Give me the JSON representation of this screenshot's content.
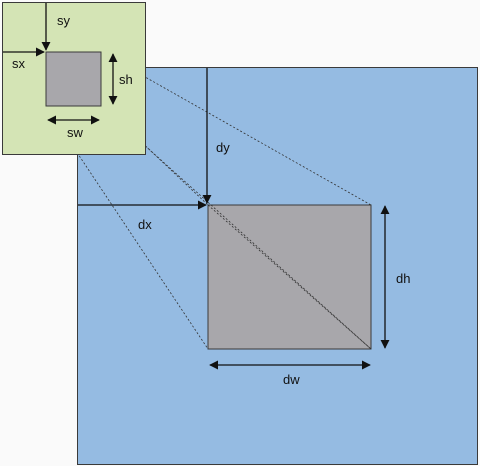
{
  "colors": {
    "destination_fill": "#95bbe2",
    "source_fill": "#d4e4b5",
    "rect_fill": "#a8a7ab",
    "outline": "#3a3a3a",
    "arrow": "#111111",
    "page_background": "#fafafa"
  },
  "labels": {
    "sy": "sy",
    "sx": "sx",
    "sh": "sh",
    "sw": "sw",
    "dy": "dy",
    "dx": "dx",
    "dh": "dh",
    "dw": "dw"
  }
}
